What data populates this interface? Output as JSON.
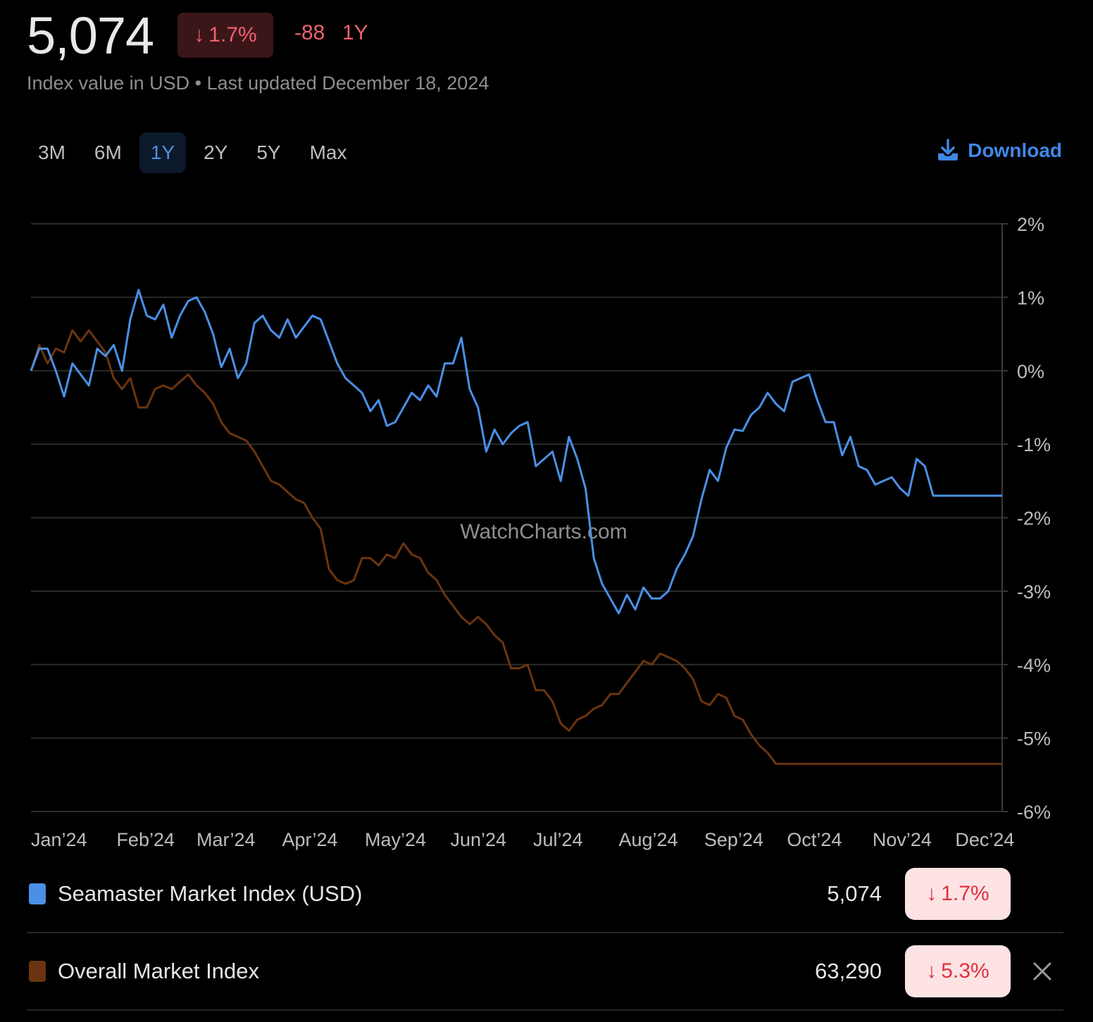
{
  "header": {
    "value": "5,074",
    "change_arrow": "↓",
    "change_pct": "1.7%",
    "change_abs": "-88",
    "period": "1Y",
    "subtitle": "Index value in USD • Last updated December 18, 2024"
  },
  "tabs": [
    {
      "label": "3M",
      "active": false
    },
    {
      "label": "6M",
      "active": false
    },
    {
      "label": "1Y",
      "active": true
    },
    {
      "label": "2Y",
      "active": false
    },
    {
      "label": "5Y",
      "active": false
    },
    {
      "label": "Max",
      "active": false
    }
  ],
  "download": {
    "label": "Download",
    "icon": "download-icon"
  },
  "watermark": "WatchCharts.com",
  "legend": [
    {
      "name": "Seamaster Market Index (USD)",
      "value": "5,074",
      "arrow": "↓",
      "change": "1.7%",
      "color": "#4a90e6"
    },
    {
      "name": "Overall Market Index",
      "value": "63,290",
      "arrow": "↓",
      "change": "5.3%",
      "color": "#6b3410",
      "removable": true
    }
  ],
  "chart_data": {
    "type": "line",
    "x_range": [
      "2024-01-01",
      "2024-12-18"
    ],
    "xticks": [
      "Jan’24",
      "Feb’24",
      "Mar’24",
      "Apr’24",
      "May’24",
      "Jun’24",
      "Jul’24",
      "Aug’24",
      "Sep’24",
      "Oct’24",
      "Nov’24",
      "Dec’24"
    ],
    "yticks": [
      "2%",
      "1%",
      "0%",
      "-1%",
      "-2%",
      "-3%",
      "-4%",
      "-5%",
      "-6%"
    ],
    "ylim": [
      -6,
      2
    ],
    "y_unit": "%",
    "grid": true,
    "y_axis_side": "right",
    "series": [
      {
        "name": "Seamaster Market Index (USD)",
        "color": "#4a90e6",
        "x": [
          "2024-01-01",
          "2024-01-04",
          "2024-01-07",
          "2024-01-10",
          "2024-01-13",
          "2024-01-16",
          "2024-01-19",
          "2024-01-22",
          "2024-01-25",
          "2024-01-28",
          "2024-01-31",
          "2024-02-03",
          "2024-02-06",
          "2024-02-09",
          "2024-02-12",
          "2024-02-15",
          "2024-02-18",
          "2024-02-21",
          "2024-02-24",
          "2024-02-27",
          "2024-03-01",
          "2024-03-04",
          "2024-03-07",
          "2024-03-10",
          "2024-03-13",
          "2024-03-16",
          "2024-03-19",
          "2024-03-22",
          "2024-03-25",
          "2024-03-28",
          "2024-03-31",
          "2024-04-03",
          "2024-04-06",
          "2024-04-09",
          "2024-04-12",
          "2024-04-15",
          "2024-04-18",
          "2024-04-21",
          "2024-04-24",
          "2024-04-27",
          "2024-04-30",
          "2024-05-03",
          "2024-05-06",
          "2024-05-09",
          "2024-05-12",
          "2024-05-15",
          "2024-05-18",
          "2024-05-21",
          "2024-05-24",
          "2024-05-27",
          "2024-05-30",
          "2024-06-02",
          "2024-06-05",
          "2024-06-08",
          "2024-06-11",
          "2024-06-14",
          "2024-06-17",
          "2024-06-20",
          "2024-06-23",
          "2024-06-26",
          "2024-06-29",
          "2024-07-02",
          "2024-07-05",
          "2024-07-08",
          "2024-07-11",
          "2024-07-14",
          "2024-07-17",
          "2024-07-20",
          "2024-07-23",
          "2024-07-26",
          "2024-07-29",
          "2024-08-01",
          "2024-08-04",
          "2024-08-07",
          "2024-08-10",
          "2024-08-13",
          "2024-08-16",
          "2024-08-19",
          "2024-08-22",
          "2024-08-25",
          "2024-08-28",
          "2024-08-31",
          "2024-09-03",
          "2024-09-06",
          "2024-09-09",
          "2024-09-12",
          "2024-09-15",
          "2024-09-18",
          "2024-09-21",
          "2024-09-24",
          "2024-09-27",
          "2024-09-30",
          "2024-10-03",
          "2024-10-06",
          "2024-10-09",
          "2024-10-12",
          "2024-10-15",
          "2024-10-18",
          "2024-10-21",
          "2024-10-24",
          "2024-10-27",
          "2024-10-30",
          "2024-11-02",
          "2024-11-05",
          "2024-11-08",
          "2024-11-11",
          "2024-11-14",
          "2024-11-17",
          "2024-11-20",
          "2024-11-23",
          "2024-11-26",
          "2024-11-29",
          "2024-12-02",
          "2024-12-05",
          "2024-12-08",
          "2024-12-11",
          "2024-12-14",
          "2024-12-18"
        ],
        "y": [
          0.0,
          0.3,
          0.3,
          0.0,
          -0.35,
          0.1,
          -0.05,
          -0.2,
          0.3,
          0.2,
          0.35,
          0.0,
          0.7,
          1.1,
          0.75,
          0.7,
          0.9,
          0.45,
          0.75,
          0.95,
          1.0,
          0.8,
          0.5,
          0.05,
          0.3,
          -0.1,
          0.1,
          0.65,
          0.75,
          0.55,
          0.45,
          0.7,
          0.45,
          0.6,
          0.75,
          0.7,
          0.4,
          0.1,
          -0.1,
          -0.2,
          -0.3,
          -0.55,
          -0.4,
          -0.75,
          -0.7,
          -0.5,
          -0.3,
          -0.4,
          -0.2,
          -0.35,
          0.1,
          0.1,
          0.45,
          -0.25,
          -0.5,
          -1.1,
          -0.8,
          -1.0,
          -0.85,
          -0.75,
          -0.7,
          -1.3,
          -1.2,
          -1.1,
          -1.5,
          -0.9,
          -1.2,
          -1.6,
          -2.55,
          -2.9,
          -3.1,
          -3.3,
          -3.05,
          -3.25,
          -2.95,
          -3.1,
          -3.1,
          -3.0,
          -2.7,
          -2.5,
          -2.25,
          -1.75,
          -1.35,
          -1.5,
          -1.05,
          -0.8,
          -0.82,
          -0.6,
          -0.5,
          -0.3,
          -0.45,
          -0.55,
          -0.15,
          -0.1,
          -0.05,
          -0.4,
          -0.7,
          -0.7,
          -1.15,
          -0.9,
          -1.3,
          -1.35,
          -1.55,
          -1.5,
          -1.45,
          -1.6,
          -1.7,
          -1.2,
          -1.3,
          -1.7,
          -1.7,
          -1.7,
          -1.7,
          -1.7,
          -1.7,
          -1.7,
          -1.7,
          -1.7
        ],
        "y_note": "",
        "end_value": -1.7
      },
      {
        "name": "Overall Market Index",
        "color": "#6b3410",
        "x": [
          "2024-01-01",
          "2024-01-04",
          "2024-01-07",
          "2024-01-10",
          "2024-01-13",
          "2024-01-16",
          "2024-01-19",
          "2024-01-22",
          "2024-01-25",
          "2024-01-28",
          "2024-01-31",
          "2024-02-03",
          "2024-02-06",
          "2024-02-09",
          "2024-02-12",
          "2024-02-15",
          "2024-02-18",
          "2024-02-21",
          "2024-02-24",
          "2024-02-27",
          "2024-03-01",
          "2024-03-04",
          "2024-03-07",
          "2024-03-10",
          "2024-03-13",
          "2024-03-16",
          "2024-03-19",
          "2024-03-22",
          "2024-03-25",
          "2024-03-28",
          "2024-03-31",
          "2024-04-03",
          "2024-04-06",
          "2024-04-09",
          "2024-04-12",
          "2024-04-15",
          "2024-04-18",
          "2024-04-21",
          "2024-04-24",
          "2024-04-27",
          "2024-04-30",
          "2024-05-03",
          "2024-05-06",
          "2024-05-09",
          "2024-05-12",
          "2024-05-15",
          "2024-05-18",
          "2024-05-21",
          "2024-05-24",
          "2024-05-27",
          "2024-05-30",
          "2024-06-02",
          "2024-06-05",
          "2024-06-08",
          "2024-06-11",
          "2024-06-14",
          "2024-06-17",
          "2024-06-20",
          "2024-06-23",
          "2024-06-26",
          "2024-06-29",
          "2024-07-02",
          "2024-07-05",
          "2024-07-08",
          "2024-07-11",
          "2024-07-14",
          "2024-07-17",
          "2024-07-20",
          "2024-07-23",
          "2024-07-26",
          "2024-07-29",
          "2024-08-01",
          "2024-08-04",
          "2024-08-07",
          "2024-08-10",
          "2024-08-13",
          "2024-08-16",
          "2024-08-19",
          "2024-08-22",
          "2024-08-25",
          "2024-08-28",
          "2024-08-31",
          "2024-09-03",
          "2024-09-06",
          "2024-09-09",
          "2024-09-12",
          "2024-09-15",
          "2024-09-18",
          "2024-09-21",
          "2024-09-24",
          "2024-09-27",
          "2024-09-30",
          "2024-10-03",
          "2024-10-06",
          "2024-10-09",
          "2024-10-12",
          "2024-10-15",
          "2024-10-18",
          "2024-10-21",
          "2024-10-24",
          "2024-10-27",
          "2024-10-30",
          "2024-11-02",
          "2024-11-05",
          "2024-11-08",
          "2024-11-11",
          "2024-11-14",
          "2024-11-17",
          "2024-11-20",
          "2024-11-23",
          "2024-11-26",
          "2024-11-29",
          "2024-12-02",
          "2024-12-05",
          "2024-12-08",
          "2024-12-11",
          "2024-12-14",
          "2024-12-18"
        ],
        "y": [
          0.0,
          0.35,
          0.1,
          0.3,
          0.25,
          0.55,
          0.4,
          0.55,
          0.4,
          0.25,
          -0.1,
          -0.25,
          -0.1,
          -0.5,
          -0.5,
          -0.25,
          -0.2,
          -0.25,
          -0.15,
          -0.05,
          -0.2,
          -0.3,
          -0.45,
          -0.7,
          -0.85,
          -0.9,
          -0.95,
          -1.1,
          -1.3,
          -1.5,
          -1.55,
          -1.65,
          -1.75,
          -1.8,
          -2.0,
          -2.15,
          -2.7,
          -2.85,
          -2.9,
          -2.85,
          -2.55,
          -2.55,
          -2.65,
          -2.5,
          -2.55,
          -2.35,
          -2.5,
          -2.55,
          -2.75,
          -2.85,
          -3.05,
          -3.2,
          -3.35,
          -3.45,
          -3.35,
          -3.45,
          -3.6,
          -3.7,
          -4.05,
          -4.05,
          -4.0,
          -4.35,
          -4.35,
          -4.5,
          -4.8,
          -4.9,
          -4.75,
          -4.7,
          -4.6,
          -4.55,
          -4.4,
          -4.4,
          -4.25,
          -4.1,
          -3.95,
          -4.0,
          -3.85,
          -3.9,
          -3.95,
          -4.05,
          -4.2,
          -4.5,
          -4.55,
          -4.4,
          -4.45,
          -4.7,
          -4.75,
          -4.95,
          -5.1,
          -5.2,
          -5.35,
          -5.35,
          -5.35,
          -5.35,
          -5.35,
          -5.35,
          -5.35,
          -5.35,
          -5.35,
          -5.35,
          -5.35,
          -5.35,
          -5.35,
          -5.35,
          -5.35,
          -5.35,
          -5.35,
          -5.35,
          -5.35,
          -5.35,
          -5.35,
          -5.35,
          -5.35,
          -5.35,
          -5.35,
          -5.35,
          -5.35,
          -5.35
        ],
        "end_value": -5.3
      }
    ]
  }
}
